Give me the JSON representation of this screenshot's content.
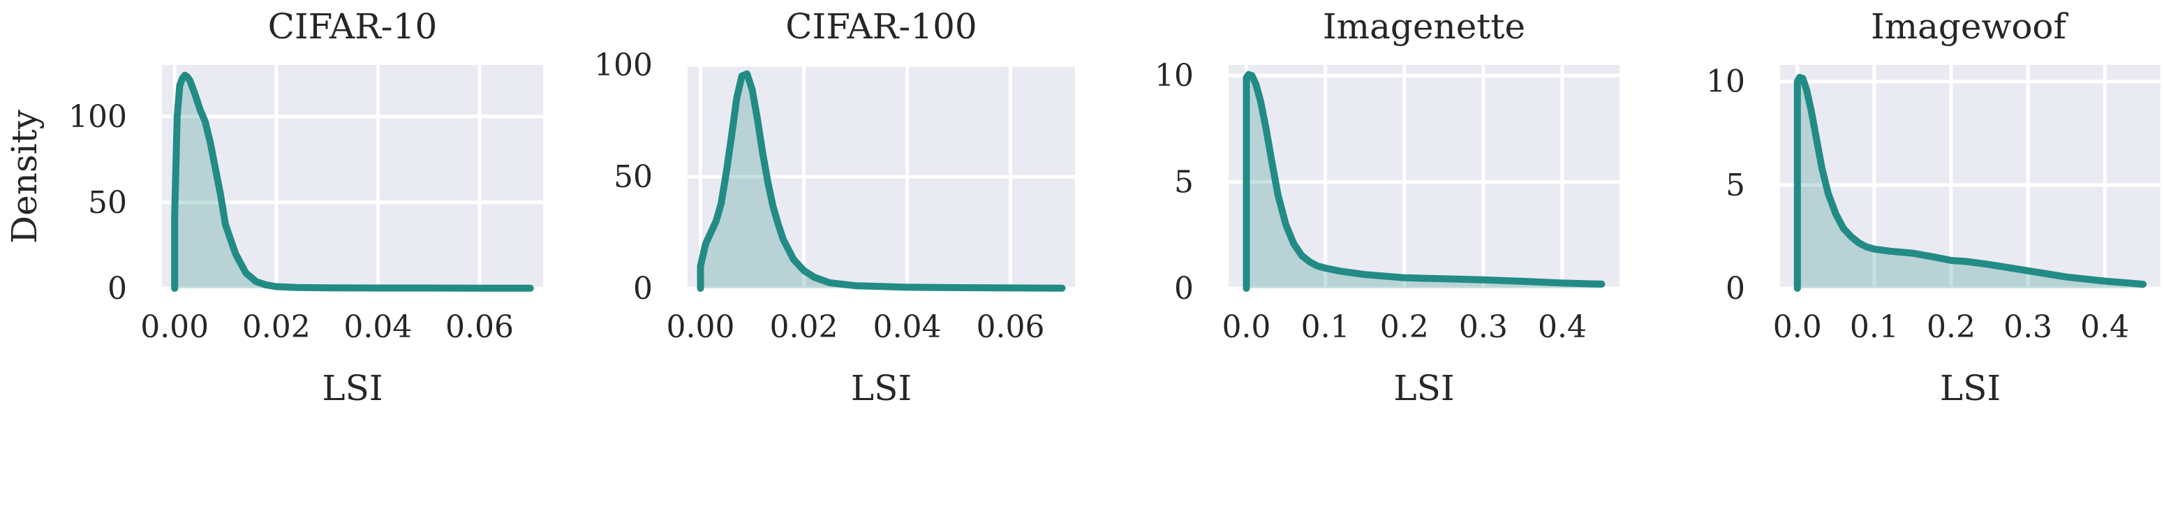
{
  "chart_data": [
    {
      "type": "area",
      "title": "CIFAR-10",
      "xlabel": "LSI",
      "ylabel": "Density",
      "xlim": [
        -0.0025,
        0.0725
      ],
      "ylim": [
        0,
        130
      ],
      "xticks": [
        0.0,
        0.02,
        0.04,
        0.06
      ],
      "xtick_labels": [
        "0.00",
        "0.02",
        "0.04",
        "0.06"
      ],
      "yticks": [
        0,
        50,
        100
      ],
      "ytick_labels": [
        "0",
        "50",
        "100"
      ],
      "grid": true,
      "color": "#228b85",
      "series": [
        {
          "x": [
            0.0,
            0.0,
            0.0005,
            0.001,
            0.0015,
            0.002,
            0.0025,
            0.003,
            0.004,
            0.005,
            0.006,
            0.007,
            0.008,
            0.009,
            0.01,
            0.012,
            0.014,
            0.016,
            0.018,
            0.02,
            0.024,
            0.03,
            0.04,
            0.05,
            0.06,
            0.07
          ],
          "y": [
            0,
            42,
            100,
            118,
            122,
            124,
            123,
            121,
            113,
            104,
            97,
            85,
            70,
            55,
            37,
            20,
            9,
            4,
            2,
            1,
            0.5,
            0.3,
            0.2,
            0.2,
            0.1,
            0.1
          ]
        }
      ]
    },
    {
      "type": "area",
      "title": "CIFAR-100",
      "xlabel": "LSI",
      "ylabel": "",
      "xlim": [
        -0.0025,
        0.0725
      ],
      "ylim": [
        0,
        100
      ],
      "xticks": [
        0.0,
        0.02,
        0.04,
        0.06
      ],
      "xtick_labels": [
        "0.00",
        "0.02",
        "0.04",
        "0.06"
      ],
      "yticks": [
        0,
        50,
        100
      ],
      "ytick_labels": [
        "0",
        "50",
        "100"
      ],
      "grid": true,
      "color": "#228b85",
      "series": [
        {
          "x": [
            0.0,
            0.0,
            0.001,
            0.002,
            0.003,
            0.004,
            0.005,
            0.006,
            0.007,
            0.008,
            0.009,
            0.01,
            0.011,
            0.012,
            0.013,
            0.014,
            0.015,
            0.016,
            0.018,
            0.02,
            0.022,
            0.025,
            0.03,
            0.04,
            0.05,
            0.06,
            0.07
          ],
          "y": [
            0,
            10,
            20,
            25,
            30,
            38,
            52,
            68,
            85,
            95,
            96,
            89,
            76,
            61,
            48,
            37,
            29,
            22,
            13,
            8,
            5,
            2.5,
            1.2,
            0.5,
            0.3,
            0.2,
            0.1
          ]
        }
      ]
    },
    {
      "type": "area",
      "title": "Imagenette",
      "xlabel": "LSI",
      "ylabel": "",
      "xlim": [
        -0.0225,
        0.4725
      ],
      "ylim": [
        0,
        10.5
      ],
      "xticks": [
        0.0,
        0.1,
        0.2,
        0.3,
        0.4
      ],
      "xtick_labels": [
        "0.0",
        "0.1",
        "0.2",
        "0.3",
        "0.4"
      ],
      "yticks": [
        0,
        5,
        10
      ],
      "ytick_labels": [
        "0",
        "5",
        "10"
      ],
      "grid": true,
      "color": "#228b85",
      "series": [
        {
          "x": [
            0.0,
            0.0,
            0.003,
            0.007,
            0.012,
            0.018,
            0.025,
            0.032,
            0.04,
            0.05,
            0.06,
            0.07,
            0.08,
            0.09,
            0.1,
            0.12,
            0.15,
            0.2,
            0.25,
            0.3,
            0.35,
            0.4,
            0.45
          ],
          "y": [
            0,
            9.9,
            10.05,
            10.0,
            9.6,
            8.8,
            7.5,
            6.0,
            4.4,
            3.0,
            2.1,
            1.55,
            1.25,
            1.05,
            0.95,
            0.8,
            0.65,
            0.5,
            0.45,
            0.4,
            0.33,
            0.25,
            0.2
          ]
        }
      ]
    },
    {
      "type": "area",
      "title": "Imagewoof",
      "xlabel": "LSI",
      "ylabel": "",
      "xlim": [
        -0.0225,
        0.4725
      ],
      "ylim": [
        0,
        10.8
      ],
      "xticks": [
        0.0,
        0.1,
        0.2,
        0.3,
        0.4
      ],
      "xtick_labels": [
        "0.0",
        "0.1",
        "0.2",
        "0.3",
        "0.4"
      ],
      "yticks": [
        0,
        5,
        10
      ],
      "ytick_labels": [
        "0",
        "5",
        "10"
      ],
      "grid": true,
      "color": "#228b85",
      "series": [
        {
          "x": [
            0.0,
            0.0,
            0.003,
            0.007,
            0.012,
            0.018,
            0.025,
            0.032,
            0.04,
            0.05,
            0.06,
            0.07,
            0.08,
            0.09,
            0.1,
            0.12,
            0.15,
            0.18,
            0.2,
            0.22,
            0.25,
            0.3,
            0.35,
            0.4,
            0.45
          ],
          "y": [
            0,
            10.0,
            10.2,
            10.15,
            9.6,
            8.6,
            7.2,
            5.8,
            4.6,
            3.6,
            2.9,
            2.5,
            2.2,
            2.0,
            1.9,
            1.8,
            1.7,
            1.5,
            1.35,
            1.3,
            1.15,
            0.85,
            0.55,
            0.35,
            0.2
          ]
        }
      ]
    }
  ]
}
